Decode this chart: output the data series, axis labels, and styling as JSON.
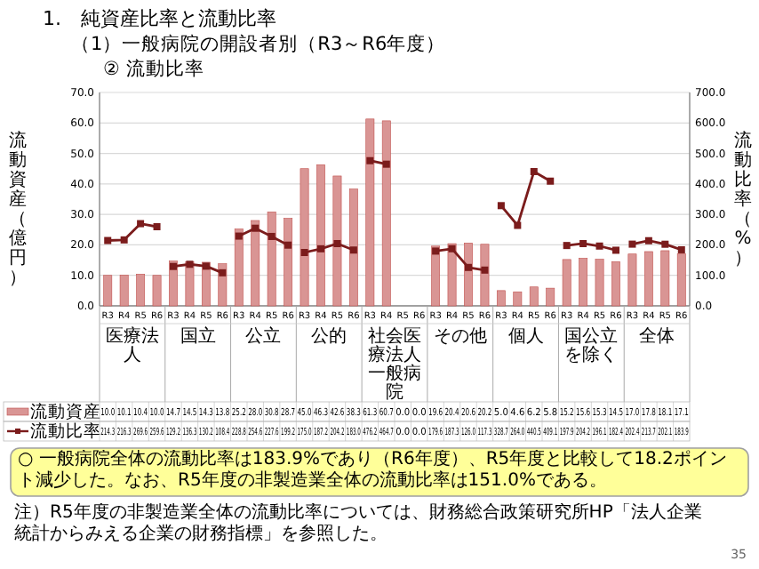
{
  "chart_data": {
    "type": "bar",
    "title": "1.　純資産比率と流動比率",
    "subtitle": "（1）一般病院の開設者別（R3～R6年度）",
    "ylabel": "流動資産（億円）",
    "y2label": "流動比率（%）",
    "categories": [
      "R3",
      "R4",
      "R5",
      "R6",
      "R3",
      "R4",
      "R5",
      "R6",
      "R3",
      "R4",
      "R5",
      "R6",
      "R3",
      "R4",
      "R5",
      "R6",
      "R3",
      "R4",
      "R5",
      "R6",
      "R3",
      "R4",
      "R5",
      "R6",
      "R3",
      "R4",
      "R5",
      "R6",
      "R3",
      "R4",
      "R5",
      "R6",
      "R3",
      "R4",
      "R5",
      "R6"
    ],
    "series": [
      {
        "name": "流動資産",
        "color": "#d99594",
        "values": [
          10.0,
          10.1,
          10.4,
          10.0,
          14.7,
          14.5,
          14.3,
          13.8,
          25.2,
          28.0,
          30.8,
          28.7,
          45.0,
          46.3,
          42.6,
          38.3,
          61.3,
          60.7,
          0.0,
          0.0,
          19.6,
          20.4,
          20.6,
          20.2,
          5.0,
          4.6,
          6.2,
          5.8,
          15.2,
          15.6,
          15.3,
          14.5,
          17.0,
          17.8,
          18.1,
          17.1
        ],
        "value_labels": [
          "10.0",
          "10.1",
          "10.4",
          "10.0",
          "14.7",
          "14.5",
          "14.3",
          "13.8",
          "25.2",
          "28.0",
          "30.8",
          "28.7",
          "45.0",
          "46.3",
          "42.6",
          "38.3",
          "61.3",
          "60.7",
          "0.0",
          "0.0",
          "19.6",
          "20.4",
          "20.6",
          "20.2",
          "5.0",
          "4.6",
          "6.2",
          "5.8",
          "15.2",
          "15.6",
          "15.3",
          "14.5",
          "17.0",
          "17.8",
          "18.1",
          "17.1"
        ]
      },
      {
        "name": "流動比率",
        "type": "line",
        "axis": "y2",
        "color": "#7b1c1c",
        "values": [
          214.3,
          216.3,
          269.6,
          259.6,
          129.2,
          136.3,
          130.2,
          108.4,
          228.8,
          254.6,
          227.6,
          199.2,
          175.0,
          187.2,
          204.2,
          183.0,
          476.2,
          464.7,
          null,
          null,
          179.6,
          187.3,
          126.0,
          117.3,
          328.7,
          264.0,
          440.5,
          409.1,
          197.9,
          204.2,
          196.1,
          182.4,
          202.4,
          213.7,
          202.1,
          183.9
        ],
        "value_labels": [
          "214.3",
          "216.3",
          "269.6",
          "259.6",
          "129.2",
          "136.3",
          "130.2",
          "108.4",
          "228.8",
          "254.6",
          "227.6",
          "199.2",
          "175.0",
          "187.2",
          "204.2",
          "183.0",
          "476.2",
          "464.7",
          "0.0",
          "0.0",
          "179.6",
          "187.3",
          "126.0",
          "117.3",
          "328.7",
          "264.0",
          "440.5",
          "409.1",
          "197.9",
          "204.2",
          "196.1",
          "182.4",
          "202.4",
          "213.7",
          "202.1",
          "183.9"
        ]
      }
    ],
    "ylim": [
      0,
      70
    ],
    "yticks": [
      {
        "value": 0,
        "label": "0.0"
      },
      {
        "value": 10,
        "label": "10.0"
      },
      {
        "value": 20,
        "label": "20.0"
      },
      {
        "value": 30,
        "label": "30.0"
      },
      {
        "value": 40,
        "label": "40.0"
      },
      {
        "value": 50,
        "label": "50.0"
      },
      {
        "value": 60,
        "label": "60.0"
      },
      {
        "value": 70,
        "label": "70.0"
      }
    ],
    "y2lim": [
      0,
      700
    ],
    "y2ticks": [
      {
        "value": 0,
        "label": "0.0"
      },
      {
        "value": 100,
        "label": "100.0"
      },
      {
        "value": 200,
        "label": "200.0"
      },
      {
        "value": 300,
        "label": "300.0"
      },
      {
        "value": 400,
        "label": "400.0"
      },
      {
        "value": 500,
        "label": "500.0"
      },
      {
        "value": 600,
        "label": "600.0"
      },
      {
        "value": 700,
        "label": "700.0"
      }
    ],
    "grid": "y",
    "legend": "bottom",
    "marker": "square",
    "annotations": [
      "② 流動比率",
      "医療法人",
      "国立",
      "公立",
      "公的",
      "社会医療法人",
      "その他",
      "個人",
      "国公立を除く",
      "全体",
      "一般病院",
      "○ 一般病院全体の流動比率は183.9%であり（R6年度）、R5年度と比較して18.2ポイント減少した。なお、R5年度の非製造業全体の流動比率は151.0%である。",
      "注）R5年度の非製造業全体の流動比率については、財務総合政策研究所HP「法人企業統計からみえる企業の財務指標」を参照した。",
      "35"
    ]
  }
}
